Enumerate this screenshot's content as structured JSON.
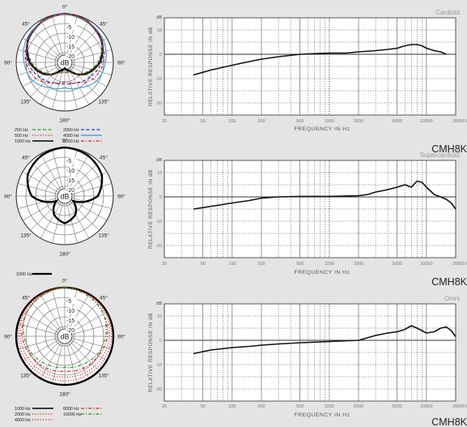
{
  "chart_data": [
    {
      "type": "polar",
      "angle_labels": [
        "0°",
        "45°",
        "90°",
        "135°",
        "180°",
        "135°",
        "90°",
        "45°"
      ],
      "ring_labels": [
        "-5",
        "-10",
        "-15",
        "-20"
      ],
      "center_label": "dB",
      "legend": [
        {
          "label": "250 Hz",
          "color": "#2e9c2e",
          "dash": "dashed"
        },
        {
          "label": "500 Hz",
          "color": "#d62728",
          "dash": "dotted"
        },
        {
          "label": "1000 Hz",
          "color": "#000000",
          "dash": "solid"
        },
        {
          "label": "2000 Hz",
          "color": "#1f3fbf",
          "dash": "dashed"
        },
        {
          "label": "4000 Hz",
          "color": "#4aa3df",
          "dash": "solid"
        },
        {
          "label": "8000 Hz",
          "color": "#d62728",
          "dash": "dashdot"
        }
      ],
      "series": [
        {
          "name": "1000 Hz",
          "color": "#000000",
          "dash": "solid",
          "width": 2.4,
          "pattern": "cardioid",
          "values_db_0_to_180": [
            0,
            -1,
            -3,
            -7,
            -13,
            -20,
            -22
          ]
        },
        {
          "name": "250 Hz",
          "color": "#2e9c2e",
          "dash": "dashed",
          "width": 1.2,
          "pattern": "cardioid",
          "values_db_0_to_180": [
            0,
            -1,
            -3,
            -8,
            -14,
            -19,
            -20
          ]
        },
        {
          "name": "500 Hz",
          "color": "#d62728",
          "dash": "dotted",
          "width": 1.2,
          "pattern": "cardioid",
          "values_db_0_to_180": [
            0,
            -1,
            -3,
            -7,
            -13,
            -19,
            -20
          ]
        },
        {
          "name": "2000 Hz",
          "color": "#1f3fbf",
          "dash": "dashed",
          "width": 1.2,
          "pattern": "cardioid",
          "values_db_0_to_180": [
            0,
            -1,
            -3,
            -6,
            -10,
            -13,
            -14
          ]
        },
        {
          "name": "4000 Hz",
          "color": "#4aa3df",
          "dash": "solid",
          "width": 1.3,
          "pattern": "cardioid",
          "values_db_0_to_180": [
            0,
            -1,
            -2,
            -4,
            -6,
            -10,
            -12
          ]
        },
        {
          "name": "8000 Hz",
          "color": "#d62728",
          "dash": "dashdot",
          "width": 1.3,
          "pattern": "cardioid",
          "values_db_0_to_180": [
            0,
            -1,
            -3,
            -5,
            -8,
            -13,
            -15
          ]
        }
      ]
    },
    {
      "type": "line",
      "title": "Cardioid",
      "model": "CMH8K",
      "xlabel": "FREQUENCY IN Hz",
      "ylabel": "RELATIVE RESPONSE IN dB",
      "y_unit_label": "dB",
      "x_scale": "log",
      "xlim": [
        20,
        20000
      ],
      "ylim": [
        -25,
        15
      ],
      "x_ticks": [
        "20",
        "50",
        "100",
        "200",
        "500",
        "1000",
        "2000",
        "5000",
        "10000",
        "20000 Hz"
      ],
      "y_ticks": [
        "10",
        "0",
        "-10",
        "-20"
      ],
      "series": [
        {
          "x": [
            40,
            60,
            100,
            150,
            200,
            300,
            500,
            1000,
            1500,
            2000,
            3000,
            4000,
            5000,
            6000,
            7000,
            8000,
            9000,
            10000,
            12000,
            14000,
            16000
          ],
          "y": [
            -8.5,
            -6.5,
            -4.5,
            -3,
            -2,
            -1,
            0,
            0.5,
            0.5,
            1,
            1.5,
            2,
            2.5,
            3.5,
            4,
            4,
            3.5,
            2.5,
            1.5,
            1,
            0
          ]
        }
      ]
    },
    {
      "type": "polar",
      "angle_labels": [
        "0°",
        "45°",
        "90°",
        "135°",
        "180°",
        "135°",
        "90°",
        "45°"
      ],
      "ring_labels": [
        "-5",
        "-10",
        "-15",
        "-20"
      ],
      "center_label": "dB",
      "legend": [
        {
          "label": "1000 Hz",
          "color": "#000000",
          "dash": "solid"
        }
      ],
      "series": [
        {
          "name": "1000 Hz",
          "color": "#000000",
          "dash": "solid",
          "width": 2.4,
          "pattern": "supercardioid",
          "values_db_0_to_180": [
            0,
            -1,
            -3,
            -8,
            -20,
            -14,
            -11
          ]
        }
      ]
    },
    {
      "type": "line",
      "title": "Supercardioid",
      "model": "CMH8K",
      "xlabel": "FREQUENCY IN Hz",
      "ylabel": "RELATIVE RESPONSE IN dB",
      "y_unit_label": "dB",
      "x_scale": "log",
      "xlim": [
        20,
        20000
      ],
      "ylim": [
        -25,
        15
      ],
      "x_ticks": [
        "20",
        "50",
        "100",
        "200",
        "500",
        "1000",
        "2000",
        "5000",
        "10000",
        "20000 Hz"
      ],
      "y_ticks": [
        "10",
        "0",
        "-10",
        "-20"
      ],
      "series": [
        {
          "x": [
            40,
            70,
            100,
            150,
            200,
            300,
            500,
            1000,
            2000,
            2500,
            3000,
            3500,
            4000,
            5000,
            6000,
            7000,
            8000,
            9000,
            10000,
            12000,
            14000,
            16000,
            18000,
            20000
          ],
          "y": [
            -5,
            -3.5,
            -2.5,
            -1.5,
            -0.5,
            0,
            0.2,
            0.2,
            0.5,
            1,
            2,
            2.5,
            3,
            4,
            5,
            4,
            6.5,
            6,
            4,
            1,
            0,
            -1,
            -2.5,
            -5
          ]
        }
      ]
    },
    {
      "type": "polar",
      "angle_labels": [
        "0°",
        "45°",
        "90°",
        "135°",
        "180°",
        "135°",
        "90°",
        "45°"
      ],
      "ring_labels": [
        "-5",
        "-10",
        "-15",
        "-20"
      ],
      "center_label": "dB",
      "legend": [
        {
          "label": "1000 Hz",
          "color": "#000000",
          "dash": "solid"
        },
        {
          "label": "2000 Hz",
          "color": "#d62728",
          "dash": "dotted"
        },
        {
          "label": "4000 Hz",
          "color": "#d62728",
          "dash": "dotted"
        },
        {
          "label": "8000 Hz",
          "color": "#d62728",
          "dash": "dashdot"
        },
        {
          "label": "16000 Hz",
          "color": "#2e9c2e",
          "dash": "dashdot"
        }
      ],
      "series": [
        {
          "name": "1000 Hz",
          "color": "#000000",
          "dash": "solid",
          "width": 2.4,
          "pattern": "omni",
          "values_db_0_to_180": [
            0,
            0,
            0,
            0,
            0,
            0,
            0
          ]
        },
        {
          "name": "2000 Hz",
          "color": "#d62728",
          "dash": "dotted",
          "width": 1.2,
          "pattern": "omni",
          "values_db_0_to_180": [
            0,
            0,
            -0.5,
            -1,
            -1.5,
            -2,
            -2
          ]
        },
        {
          "name": "4000 Hz",
          "color": "#d62728",
          "dash": "dotted",
          "width": 1.2,
          "pattern": "omni",
          "values_db_0_to_180": [
            0,
            -0.5,
            -1,
            -2,
            -3,
            -3.5,
            -4
          ]
        },
        {
          "name": "8000 Hz",
          "color": "#d62728",
          "dash": "dashdot",
          "width": 1.3,
          "pattern": "omni",
          "values_db_0_to_180": [
            0,
            -1,
            -2,
            -3,
            -5,
            -6,
            -7
          ]
        },
        {
          "name": "16000 Hz",
          "color": "#2e9c2e",
          "dash": "dashdot",
          "width": 1.3,
          "pattern": "omni",
          "values_db_0_to_180": [
            0,
            -1,
            -2,
            -4,
            -6,
            -8,
            -9
          ]
        }
      ]
    },
    {
      "type": "line",
      "title": "Omni",
      "model": "CMH8K",
      "xlabel": "FREQUENCY IN Hz",
      "ylabel": "RELATIVE RESPONSE IN dB",
      "y_unit_label": "dB",
      "x_scale": "log",
      "xlim": [
        20,
        20000
      ],
      "ylim": [
        -25,
        15
      ],
      "x_ticks": [
        "20",
        "50",
        "100",
        "200",
        "500",
        "1000",
        "2000",
        "5000",
        "10000",
        "20000 Hz"
      ],
      "y_ticks": [
        "10",
        "0",
        "-10",
        "-20"
      ],
      "series": [
        {
          "x": [
            40,
            60,
            100,
            150,
            200,
            300,
            500,
            1000,
            2000,
            3000,
            4000,
            5000,
            6000,
            7000,
            8000,
            9000,
            10000,
            12000,
            14000,
            16000,
            18000,
            20000
          ],
          "y": [
            -5.5,
            -4,
            -3,
            -2.5,
            -2,
            -1.5,
            -1,
            -0.5,
            0,
            2,
            3,
            3.5,
            4.5,
            6,
            5,
            4,
            3,
            3.5,
            5,
            5.5,
            4,
            1.5
          ]
        }
      ]
    }
  ]
}
